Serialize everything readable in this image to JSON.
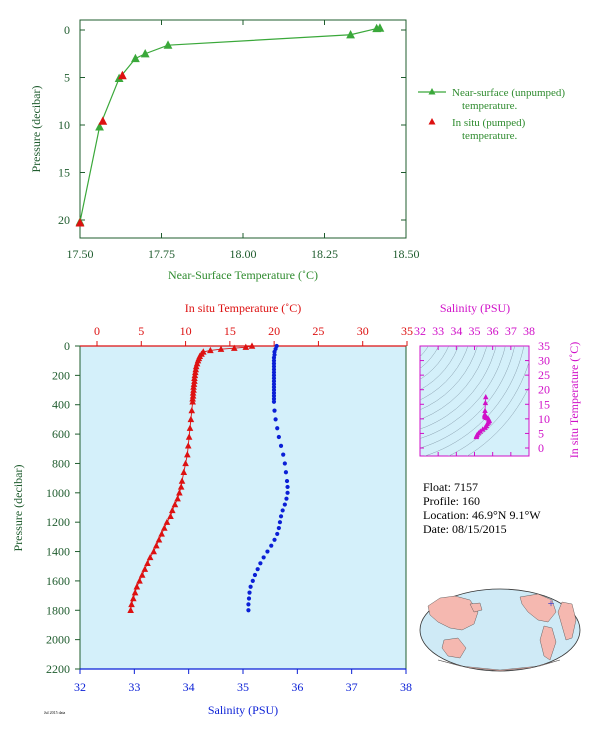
{
  "colors": {
    "green": "#3aa83a",
    "green_text": "#2e8b2e",
    "dark_green": "#1f5c2e",
    "red": "#dd1111",
    "blue": "#0a1fd6",
    "magenta": "#d010c8",
    "panel_bg": "#d4f0fa",
    "land": "#f5b8b0",
    "ocean": "#cfeaf6",
    "plus": "#2233cc"
  },
  "info": {
    "float": "Float:  7157",
    "profile": "Profile:  160",
    "location": "Location:  46.9°N   9.1°W",
    "date": "Date:  08/15/2015"
  },
  "footer": "Jul 2015 data",
  "chart_data": [
    {
      "type": "line",
      "id": "near_surface",
      "xlabel": "Near-Surface Temperature (˚C)",
      "ylabel": "Pressure (decibar)",
      "xlim": [
        17.5,
        18.5
      ],
      "ylim": [
        0,
        21.5
      ],
      "y_inverted": true,
      "xticks": [
        "17.50",
        "17.75",
        "18.00",
        "18.25",
        "18.50"
      ],
      "yticks": [
        "0",
        "5",
        "10",
        "15",
        "20"
      ],
      "legend_position": "right",
      "series": [
        {
          "name": "Near-surface (unpumped) temperature.",
          "marker": "triangle",
          "line": true,
          "x": [
            18.42,
            18.41,
            18.33,
            17.77,
            17.7,
            17.67,
            17.62,
            17.56,
            17.5
          ],
          "y": [
            -0.2,
            -0.15,
            0.5,
            1.6,
            2.5,
            3.0,
            5.1,
            10.2,
            20.2
          ]
        },
        {
          "name": "In situ (pumped) temperature.",
          "marker": "triangle",
          "line": false,
          "x": [
            17.63,
            17.57,
            17.5
          ],
          "y": [
            4.8,
            9.6,
            20.3
          ]
        }
      ]
    },
    {
      "type": "scatter",
      "id": "profile",
      "ylabel": "Pressure (decibar)",
      "ylim": [
        0,
        2200
      ],
      "y_inverted": true,
      "yticks": [
        "0",
        "200",
        "400",
        "600",
        "800",
        "1000",
        "1200",
        "1400",
        "1600",
        "1800",
        "2000",
        "2200"
      ],
      "top_axis": {
        "label": "In situ Temperature (˚C)",
        "range": [
          -2,
          35
        ],
        "ticks": [
          "0",
          "5",
          "10",
          "15",
          "20",
          "25",
          "30",
          "35"
        ]
      },
      "bottom_axis": {
        "label": "Salinity (PSU)",
        "range": [
          32,
          38
        ],
        "ticks": [
          "32",
          "33",
          "34",
          "35",
          "36",
          "37",
          "38"
        ]
      },
      "series": [
        {
          "name": "In situ Temperature",
          "axis": "top",
          "marker": "triangle",
          "points": [
            [
              17.5,
              0
            ],
            [
              16.8,
              8
            ],
            [
              15.5,
              15
            ],
            [
              14,
              22
            ],
            [
              12.8,
              30
            ],
            [
              12,
              40
            ],
            [
              11.8,
              55
            ],
            [
              11.6,
              70
            ],
            [
              11.5,
              85
            ],
            [
              11.4,
              100
            ],
            [
              11.3,
              120
            ],
            [
              11.2,
              140
            ],
            [
              11.15,
              160
            ],
            [
              11.1,
              180
            ],
            [
              11.05,
              200
            ],
            [
              11,
              220
            ],
            [
              11,
              240
            ],
            [
              10.95,
              260
            ],
            [
              10.9,
              280
            ],
            [
              10.9,
              300
            ],
            [
              10.85,
              320
            ],
            [
              10.85,
              340
            ],
            [
              10.8,
              360
            ],
            [
              10.8,
              380
            ],
            [
              10.7,
              440
            ],
            [
              10.6,
              500
            ],
            [
              10.5,
              560
            ],
            [
              10.4,
              620
            ],
            [
              10.3,
              680
            ],
            [
              10.2,
              740
            ],
            [
              10,
              800
            ],
            [
              9.8,
              860
            ],
            [
              9.6,
              920
            ],
            [
              9.5,
              960
            ],
            [
              9.3,
              1000
            ],
            [
              9.1,
              1040
            ],
            [
              8.8,
              1080
            ],
            [
              8.5,
              1120
            ],
            [
              8.3,
              1160
            ],
            [
              7.9,
              1200
            ],
            [
              7.6,
              1240
            ],
            [
              7.3,
              1280
            ],
            [
              7,
              1320
            ],
            [
              6.7,
              1360
            ],
            [
              6.4,
              1400
            ],
            [
              6,
              1440
            ],
            [
              5.7,
              1480
            ],
            [
              5.4,
              1520
            ],
            [
              5.1,
              1560
            ],
            [
              4.8,
              1600
            ],
            [
              4.5,
              1640
            ],
            [
              4.3,
              1680
            ],
            [
              4.1,
              1720
            ],
            [
              3.9,
              1760
            ],
            [
              3.8,
              1800
            ]
          ]
        },
        {
          "name": "Salinity",
          "axis": "bottom",
          "marker": "dot",
          "points": [
            [
              35.62,
              0
            ],
            [
              35.6,
              20
            ],
            [
              35.58,
              40
            ],
            [
              35.58,
              60
            ],
            [
              35.57,
              80
            ],
            [
              35.57,
              100
            ],
            [
              35.57,
              120
            ],
            [
              35.57,
              140
            ],
            [
              35.57,
              160
            ],
            [
              35.57,
              180
            ],
            [
              35.57,
              200
            ],
            [
              35.57,
              220
            ],
            [
              35.57,
              240
            ],
            [
              35.57,
              260
            ],
            [
              35.57,
              280
            ],
            [
              35.57,
              300
            ],
            [
              35.57,
              320
            ],
            [
              35.57,
              340
            ],
            [
              35.57,
              360
            ],
            [
              35.57,
              380
            ],
            [
              35.58,
              440
            ],
            [
              35.6,
              500
            ],
            [
              35.63,
              560
            ],
            [
              35.66,
              620
            ],
            [
              35.7,
              680
            ],
            [
              35.74,
              740
            ],
            [
              35.77,
              800
            ],
            [
              35.79,
              860
            ],
            [
              35.81,
              920
            ],
            [
              35.82,
              960
            ],
            [
              35.82,
              1000
            ],
            [
              35.8,
              1040
            ],
            [
              35.77,
              1080
            ],
            [
              35.73,
              1120
            ],
            [
              35.7,
              1160
            ],
            [
              35.68,
              1200
            ],
            [
              35.66,
              1240
            ],
            [
              35.63,
              1280
            ],
            [
              35.58,
              1320
            ],
            [
              35.52,
              1360
            ],
            [
              35.45,
              1400
            ],
            [
              35.38,
              1440
            ],
            [
              35.32,
              1480
            ],
            [
              35.27,
              1520
            ],
            [
              35.22,
              1560
            ],
            [
              35.18,
              1600
            ],
            [
              35.14,
              1640
            ],
            [
              35.12,
              1680
            ],
            [
              35.11,
              1720
            ],
            [
              35.1,
              1760
            ],
            [
              35.1,
              1800
            ]
          ]
        }
      ]
    },
    {
      "type": "scatter",
      "id": "ts_diagram",
      "xlabel": "Salinity (PSU)",
      "ylabel": "In situ Temperature (˚C)",
      "xlim": [
        32,
        38
      ],
      "ylim": [
        -2,
        35
      ],
      "xticks": [
        "32",
        "33",
        "34",
        "35",
        "36",
        "37",
        "38"
      ],
      "yticks": [
        "0",
        "5",
        "10",
        "15",
        "20",
        "25",
        "30",
        "35"
      ],
      "density_contours": true,
      "series": [
        {
          "name": "T-S",
          "marker": "triangle",
          "points": [
            [
              35.62,
              17.5
            ],
            [
              35.6,
              15.5
            ],
            [
              35.58,
              12.8
            ],
            [
              35.57,
              11.6
            ],
            [
              35.57,
              11.3
            ],
            [
              35.57,
              11
            ],
            [
              35.57,
              10.8
            ],
            [
              35.6,
              10.6
            ],
            [
              35.66,
              10.4
            ],
            [
              35.74,
              10.2
            ],
            [
              35.79,
              9.8
            ],
            [
              35.82,
              9.3
            ],
            [
              35.77,
              8.8
            ],
            [
              35.7,
              8.3
            ],
            [
              35.66,
              7.6
            ],
            [
              35.58,
              7
            ],
            [
              35.45,
              6.4
            ],
            [
              35.32,
              5.7
            ],
            [
              35.22,
              5.1
            ],
            [
              35.14,
              4.5
            ],
            [
              35.11,
              4.1
            ],
            [
              35.1,
              3.8
            ]
          ]
        }
      ]
    }
  ]
}
